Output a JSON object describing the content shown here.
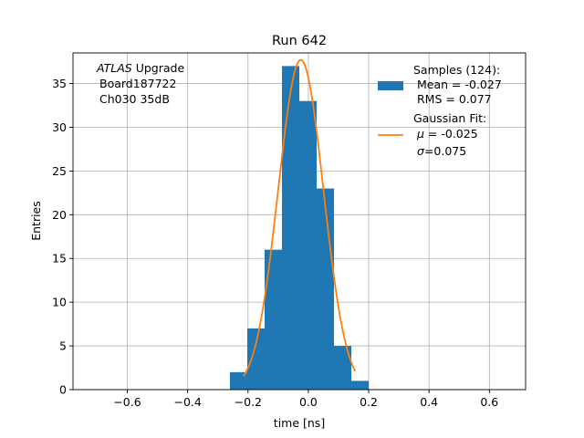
{
  "chart_data": {
    "type": "bar",
    "title": "Run 642",
    "xlabel": "time [ns]",
    "ylabel": "Entries",
    "xlim": [
      -0.78,
      0.72
    ],
    "ylim": [
      0,
      38.5
    ],
    "xticks": [
      -0.6,
      -0.4,
      -0.2,
      0.0,
      0.2,
      0.4,
      0.6
    ],
    "xtick_labels": [
      "−0.6",
      "−0.4",
      "−0.2",
      "0.0",
      "0.2",
      "0.4",
      "0.6"
    ],
    "yticks": [
      0,
      5,
      10,
      15,
      20,
      25,
      30,
      35
    ],
    "ytick_labels": [
      "0",
      "5",
      "10",
      "15",
      "20",
      "25",
      "30",
      "35"
    ],
    "grid": true,
    "histogram": {
      "bin_edges": [
        -0.26,
        -0.2025,
        -0.145,
        -0.0875,
        -0.03,
        0.0275,
        0.085,
        0.1425,
        0.2
      ],
      "counts": [
        2,
        7,
        16,
        37,
        33,
        23,
        5,
        1
      ],
      "color": "#1f77b4"
    },
    "fit": {
      "mu": -0.025,
      "sigma": 0.075,
      "amplitude": 37.7,
      "x_range": [
        -0.215,
        0.155
      ],
      "color": "#ff7f0e"
    },
    "annotation": {
      "line1_italic": "ATLAS",
      "line1_rest": " Upgrade",
      "line2": "Board187722",
      "line3": "Ch030 35dB"
    },
    "legend": {
      "position": "top-right",
      "samples": {
        "line1": "Samples (124):",
        "line2": "Mean = -0.027",
        "line3": "RMS = 0.077"
      },
      "fit": {
        "line1": "Gaussian Fit:",
        "mu_symbol": "μ",
        "mu_value": " = -0.025",
        "sigma_symbol": "σ",
        "sigma_value": "=0.075"
      }
    }
  }
}
